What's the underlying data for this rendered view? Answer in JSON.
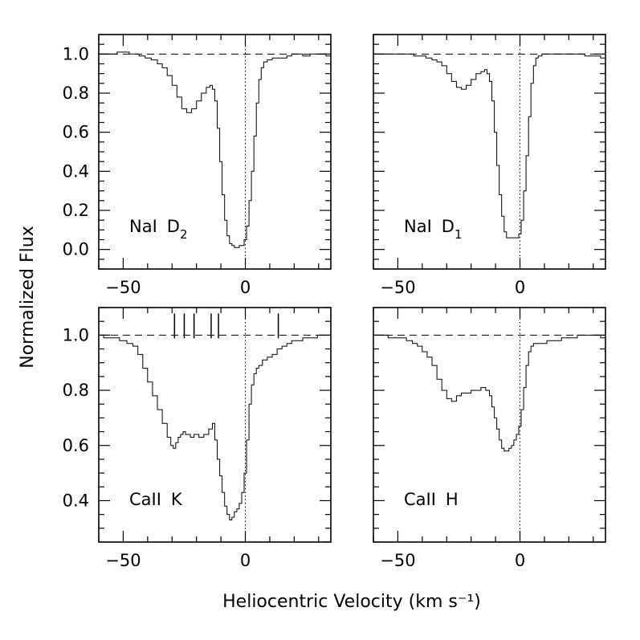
{
  "chart_data": {
    "type": "line",
    "xlabel": "Heliocentric Velocity (km s⁻¹)",
    "ylabel": "Normalized Flux",
    "xlim": [
      -60,
      35
    ],
    "xticks": [
      -50,
      0
    ],
    "xtick_labels": [
      "−50",
      "0"
    ],
    "reference_flux": 1.0,
    "reference_velocity": 0,
    "panels": [
      {
        "id": "nai-d2",
        "ion": "NaI",
        "line": "D",
        "subscript": "2",
        "ylim": [
          -0.1,
          1.1
        ],
        "yticks": [
          0.0,
          0.2,
          0.4,
          0.6,
          0.8,
          1.0
        ],
        "ytick_labels": [
          "0.0",
          "0.2",
          "0.4",
          "0.6",
          "0.8",
          "1.0"
        ],
        "series": [
          {
            "name": "NaI D2 spectrum",
            "x": [
              -60,
              -55,
              -50,
              -45,
              -42,
              -40,
              -37,
              -35,
              -33,
              -31,
              -29,
              -27,
              -25,
              -23,
              -21,
              -19,
              -17,
              -15,
              -14,
              -13,
              -12,
              -11,
              -10,
              -9,
              -8,
              -7,
              -6,
              -5,
              -4,
              -3,
              -2,
              -1,
              0,
              1,
              2,
              3,
              4,
              5,
              6,
              7,
              8,
              10,
              12,
              14,
              16,
              18,
              20,
              22,
              25,
              28,
              31,
              35
            ],
            "y": [
              1.0,
              1.0,
              1.01,
              1.0,
              0.99,
              0.98,
              0.97,
              0.95,
              0.93,
              0.89,
              0.84,
              0.78,
              0.72,
              0.7,
              0.72,
              0.76,
              0.8,
              0.83,
              0.84,
              0.82,
              0.76,
              0.62,
              0.45,
              0.28,
              0.15,
              0.07,
              0.03,
              0.02,
              0.01,
              0.01,
              0.02,
              0.02,
              0.05,
              0.12,
              0.25,
              0.4,
              0.58,
              0.75,
              0.87,
              0.93,
              0.96,
              0.97,
              0.98,
              0.98,
              0.98,
              0.99,
              1.0,
              1.0,
              0.99,
              1.0,
              1.0,
              0.99
            ]
          }
        ]
      },
      {
        "id": "nai-d1",
        "ion": "NaI",
        "line": "D",
        "subscript": "1",
        "ylim": [
          -0.1,
          1.1
        ],
        "yticks": [
          0.0,
          0.2,
          0.4,
          0.6,
          0.8,
          1.0
        ],
        "ytick_labels": [
          "0.0",
          "0.2",
          "0.4",
          "0.6",
          "0.8",
          "1.0"
        ],
        "series": [
          {
            "name": "NaI D1 spectrum",
            "x": [
              -60,
              -55,
              -50,
              -45,
              -42,
              -40,
              -37,
              -35,
              -33,
              -31,
              -29,
              -27,
              -25,
              -23,
              -21,
              -19,
              -17,
              -15,
              -14,
              -13,
              -12,
              -11,
              -10,
              -9,
              -8,
              -7,
              -6,
              -5,
              -4,
              -3,
              -2,
              -1,
              0,
              1,
              2,
              3,
              4,
              5,
              6,
              7,
              8,
              10,
              12,
              14,
              16,
              18,
              20,
              22,
              25,
              28,
              31,
              35
            ],
            "y": [
              1.0,
              1.0,
              1.0,
              1.0,
              0.99,
              0.99,
              0.98,
              0.97,
              0.96,
              0.94,
              0.9,
              0.86,
              0.83,
              0.82,
              0.84,
              0.87,
              0.9,
              0.91,
              0.92,
              0.9,
              0.86,
              0.76,
              0.6,
              0.43,
              0.28,
              0.17,
              0.09,
              0.06,
              0.06,
              0.06,
              0.06,
              0.06,
              0.08,
              0.15,
              0.3,
              0.48,
              0.68,
              0.85,
              0.94,
              0.98,
              0.99,
              1.0,
              1.0,
              1.0,
              1.0,
              1.0,
              1.0,
              1.0,
              1.0,
              0.99,
              0.99,
              0.98
            ]
          }
        ]
      },
      {
        "id": "caii-k",
        "ion": "CaII",
        "line": "K",
        "subscript": "",
        "ylim": [
          0.25,
          1.1
        ],
        "yticks": [
          0.4,
          0.6,
          0.8,
          1.0
        ],
        "ytick_labels": [
          "0.4",
          "0.6",
          "0.8",
          "1.0"
        ],
        "components": [
          -29,
          -25,
          -21,
          -14,
          -11,
          13.5
        ],
        "series": [
          {
            "name": "CaII K spectrum",
            "x": [
              -60,
              -56,
              -53,
              -50,
              -47,
              -45,
              -43,
              -41,
              -39,
              -37,
              -35,
              -33,
              -31,
              -30,
              -29,
              -28,
              -27,
              -26,
              -25,
              -24,
              -23,
              -22,
              -20,
              -18,
              -16,
              -14,
              -13,
              -12,
              -11,
              -10,
              -9,
              -8,
              -7,
              -6,
              -5,
              -4,
              -3,
              -2,
              -1,
              0,
              1,
              2,
              3,
              4,
              5,
              6,
              8,
              10,
              12,
              14,
              16,
              18,
              20,
              22,
              25,
              28,
              31,
              35
            ],
            "y": [
              1.0,
              0.99,
              0.99,
              0.98,
              0.97,
              0.96,
              0.93,
              0.88,
              0.83,
              0.78,
              0.73,
              0.68,
              0.63,
              0.6,
              0.59,
              0.61,
              0.63,
              0.64,
              0.65,
              0.64,
              0.64,
              0.63,
              0.64,
              0.63,
              0.64,
              0.66,
              0.68,
              0.62,
              0.55,
              0.49,
              0.43,
              0.38,
              0.35,
              0.33,
              0.34,
              0.36,
              0.37,
              0.39,
              0.43,
              0.5,
              0.62,
              0.75,
              0.82,
              0.86,
              0.88,
              0.89,
              0.91,
              0.92,
              0.93,
              0.95,
              0.96,
              0.97,
              0.98,
              0.98,
              0.99,
              0.99,
              1.0,
              1.0
            ]
          }
        ]
      },
      {
        "id": "caii-h",
        "ion": "CaII",
        "line": "H",
        "subscript": "",
        "ylim": [
          0.25,
          1.1
        ],
        "yticks": [
          0.4,
          0.6,
          0.8,
          1.0
        ],
        "ytick_labels": [
          "0.4",
          "0.6",
          "0.8",
          "1.0"
        ],
        "series": [
          {
            "name": "CaII H spectrum",
            "x": [
              -60,
              -56,
              -52,
              -48,
              -45,
              -43,
              -41,
              -39,
              -37,
              -35,
              -33,
              -31,
              -29,
              -27,
              -25,
              -23,
              -21,
              -19,
              -17,
              -15,
              -13,
              -12,
              -11,
              -10,
              -9,
              -8,
              -7,
              -6,
              -5,
              -4,
              -3,
              -2,
              -1,
              0,
              1,
              2,
              3,
              4,
              5,
              6,
              8,
              10,
              12,
              14,
              16,
              18,
              20,
              22,
              25,
              28,
              31,
              35
            ],
            "y": [
              1.0,
              1.0,
              0.99,
              0.99,
              0.98,
              0.97,
              0.96,
              0.94,
              0.92,
              0.89,
              0.84,
              0.8,
              0.77,
              0.76,
              0.78,
              0.79,
              0.79,
              0.8,
              0.8,
              0.81,
              0.8,
              0.78,
              0.74,
              0.7,
              0.66,
              0.62,
              0.59,
              0.58,
              0.58,
              0.59,
              0.6,
              0.62,
              0.64,
              0.67,
              0.73,
              0.81,
              0.89,
              0.94,
              0.96,
              0.97,
              0.97,
              0.97,
              0.98,
              0.98,
              0.98,
              0.99,
              0.99,
              0.99,
              1.0,
              1.0,
              1.0,
              0.99
            ]
          }
        ]
      }
    ]
  }
}
